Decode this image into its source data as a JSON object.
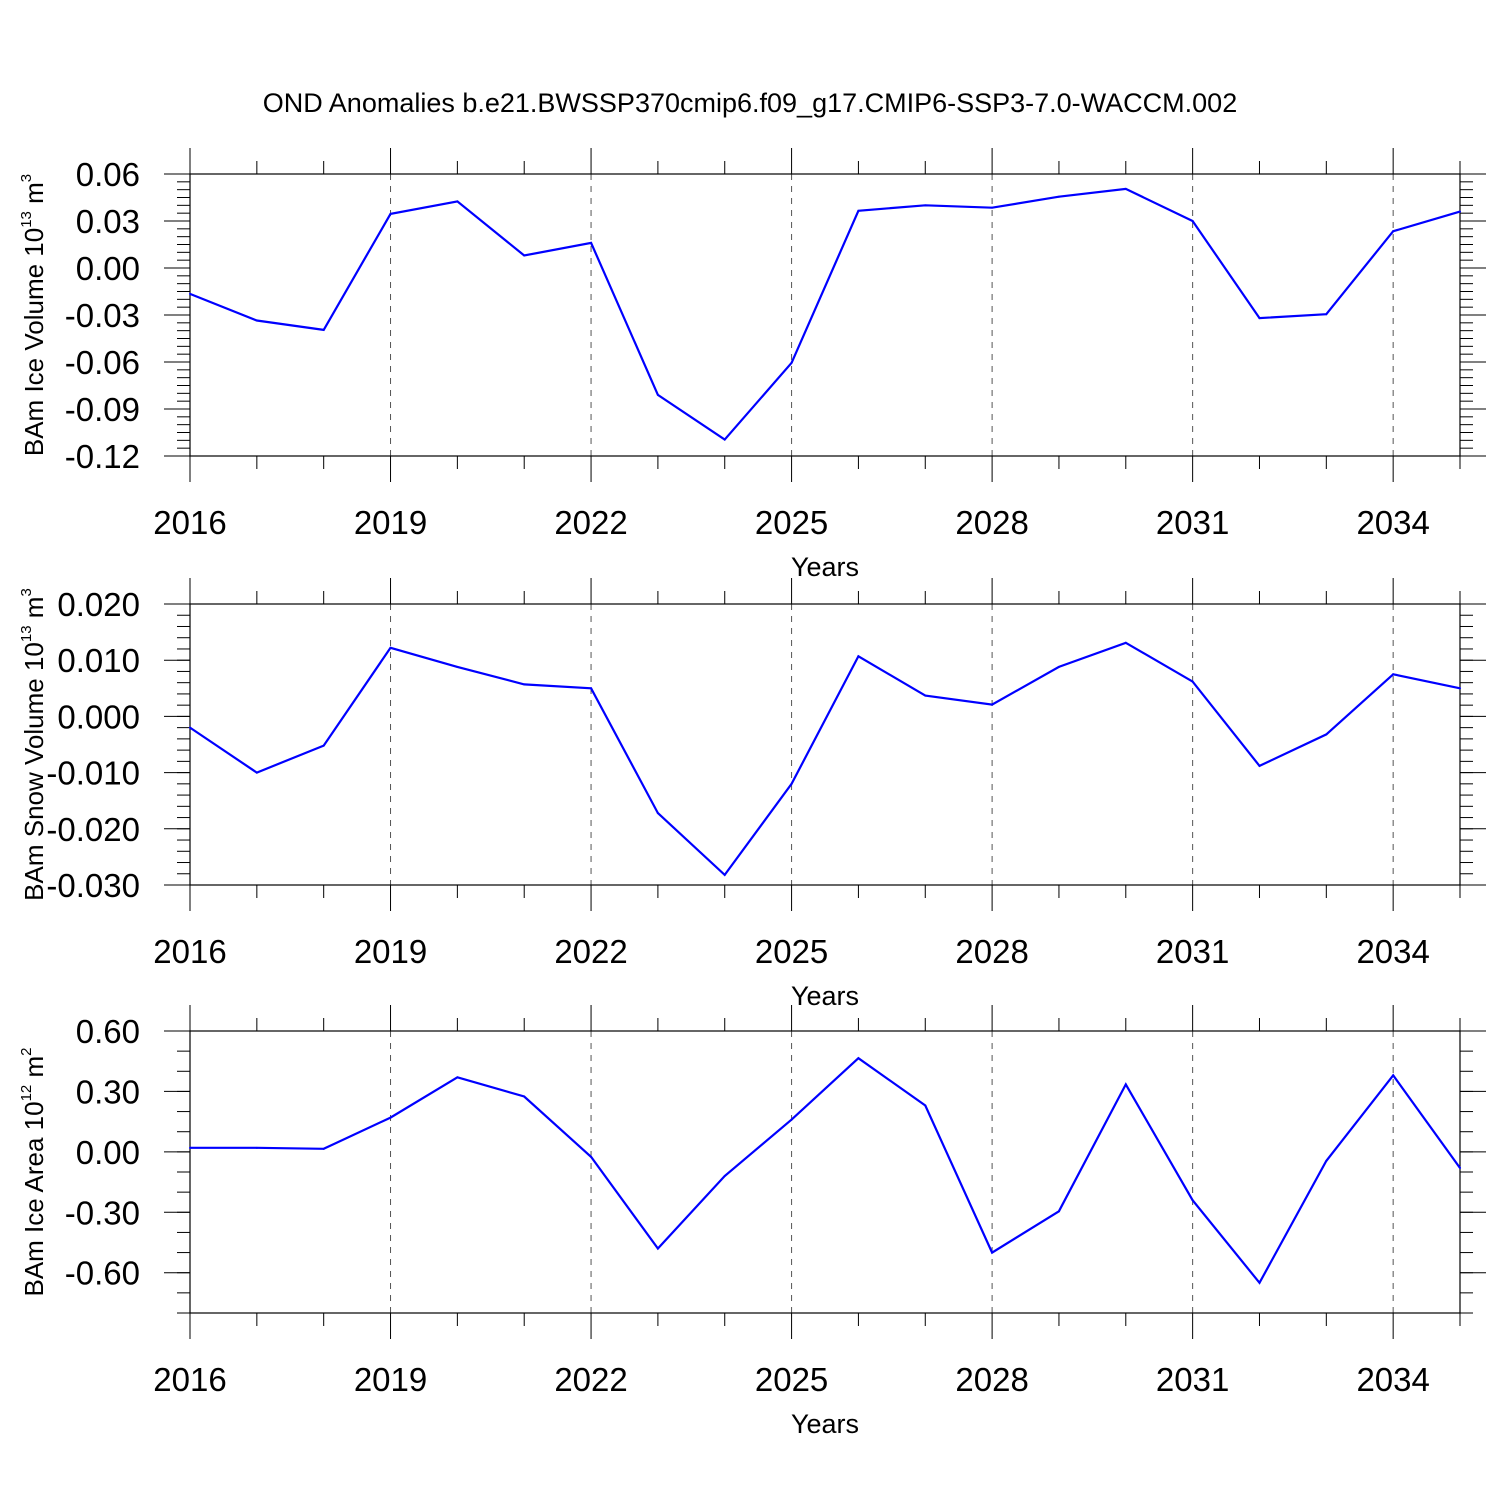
{
  "figure": {
    "title": "OND Anomalies b.e21.BWSSP370cmip6.f09_g17.CMIP6-SSP3-7.0-WACCM.002",
    "line_color": "#0000ff"
  },
  "chart_data": [
    {
      "type": "line",
      "title": "",
      "xlabel": "Years",
      "ylabel": "BAm Ice Volume 10",
      "ylabel_unit": "m",
      "ylabel_exp1": "13",
      "ylabel_exp2": "3",
      "x": [
        2016,
        2017,
        2018,
        2019,
        2020,
        2021,
        2022,
        2023,
        2024,
        2025,
        2026,
        2027,
        2028,
        2029,
        2030,
        2031,
        2032,
        2033,
        2034,
        2035
      ],
      "series": [
        {
          "values": [
            -0.0165,
            -0.0335,
            -0.0395,
            0.0345,
            0.0425,
            0.008,
            0.016,
            -0.081,
            -0.1095,
            -0.0605,
            0.0365,
            0.04,
            0.0385,
            0.0455,
            0.0505,
            0.03,
            -0.032,
            -0.0295,
            0.0235,
            0.036
          ]
        }
      ],
      "xlim": [
        2016,
        2035
      ],
      "ylim": [
        -0.12,
        0.06
      ],
      "xticks": [
        2016,
        2019,
        2022,
        2025,
        2028,
        2031,
        2034
      ],
      "xtick_labels": [
        "2016",
        "2019",
        "2022",
        "2025",
        "2028",
        "2031",
        "2034"
      ],
      "yticks": [
        0.06,
        0.03,
        0.0,
        -0.03,
        -0.06,
        -0.09,
        -0.12
      ],
      "ytick_labels": [
        "0.06",
        "0.03",
        "0.00",
        "-0.03",
        "-0.06",
        "-0.09",
        "-0.12"
      ],
      "grid": "dashed vertical lines at major x ticks"
    },
    {
      "type": "line",
      "title": "",
      "xlabel": "Years",
      "ylabel": "BAm Snow Volume 10",
      "ylabel_unit": "m",
      "ylabel_exp1": "13",
      "ylabel_exp2": "3",
      "x": [
        2016,
        2017,
        2018,
        2019,
        2020,
        2021,
        2022,
        2023,
        2024,
        2025,
        2026,
        2027,
        2028,
        2029,
        2030,
        2031,
        2032,
        2033,
        2034,
        2035
      ],
      "series": [
        {
          "values": [
            -0.002,
            -0.01,
            -0.0052,
            0.0122,
            0.0088,
            0.0057,
            0.005,
            -0.0172,
            -0.0282,
            -0.012,
            0.0107,
            0.0037,
            0.0021,
            0.0088,
            0.0131,
            0.0062,
            -0.0088,
            -0.0032,
            0.0075,
            0.005
          ]
        }
      ],
      "xlim": [
        2016,
        2035
      ],
      "ylim": [
        -0.03,
        0.02
      ],
      "xticks": [
        2016,
        2019,
        2022,
        2025,
        2028,
        2031,
        2034
      ],
      "xtick_labels": [
        "2016",
        "2019",
        "2022",
        "2025",
        "2028",
        "2031",
        "2034"
      ],
      "yticks": [
        0.02,
        0.01,
        0.0,
        -0.01,
        -0.02,
        -0.03
      ],
      "ytick_labels": [
        "0.020",
        "0.010",
        "0.000",
        "-0.010",
        "-0.020",
        "-0.030"
      ],
      "grid": "dashed vertical lines at major x ticks"
    },
    {
      "type": "line",
      "title": "",
      "xlabel": "Years",
      "ylabel": "BAm Ice Area 10",
      "ylabel_unit": "m",
      "ylabel_exp1": "12",
      "ylabel_exp2": "2",
      "x": [
        2016,
        2017,
        2018,
        2019,
        2020,
        2021,
        2022,
        2023,
        2024,
        2025,
        2026,
        2027,
        2028,
        2029,
        2030,
        2031,
        2032,
        2033,
        2034,
        2035
      ],
      "series": [
        {
          "values": [
            0.02,
            0.02,
            0.015,
            0.17,
            0.37,
            0.275,
            -0.025,
            -0.48,
            -0.12,
            0.16,
            0.465,
            0.23,
            -0.5,
            -0.295,
            0.335,
            -0.24,
            -0.65,
            -0.045,
            0.38,
            -0.08
          ]
        }
      ],
      "xlim": [
        2016,
        2035
      ],
      "ylim": [
        -0.8,
        0.6
      ],
      "xticks": [
        2016,
        2019,
        2022,
        2025,
        2028,
        2031,
        2034
      ],
      "xtick_labels": [
        "2016",
        "2019",
        "2022",
        "2025",
        "2028",
        "2031",
        "2034"
      ],
      "yticks": [
        0.6,
        0.3,
        0.0,
        -0.3,
        -0.6
      ],
      "ytick_labels": [
        "0.60",
        "0.30",
        "0.00",
        "-0.30",
        "-0.60"
      ],
      "grid": "dashed vertical lines at major x ticks"
    }
  ]
}
